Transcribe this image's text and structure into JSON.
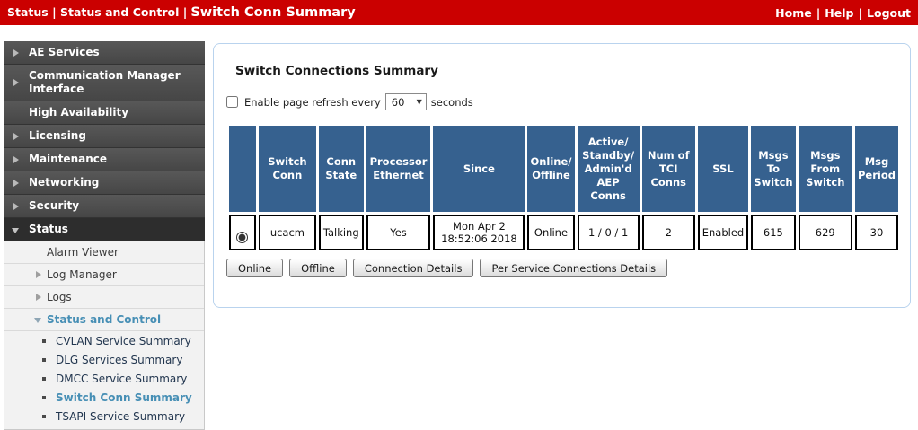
{
  "topbar": {
    "breadcrumb": "Status | Status and Control |",
    "current_page": "Switch Conn Summary",
    "separator": "|",
    "links": [
      "Home",
      "Help",
      "Logout"
    ],
    "background_color": "#cb0000"
  },
  "sidebar": {
    "items": [
      {
        "label": "AE Services"
      },
      {
        "label": "Communication Manager Interface"
      },
      {
        "label": "High Availability"
      },
      {
        "label": "Licensing"
      },
      {
        "label": "Maintenance"
      },
      {
        "label": "Networking"
      },
      {
        "label": "Security"
      },
      {
        "label": "Status"
      }
    ],
    "submenu": [
      {
        "label": "Alarm Viewer"
      },
      {
        "label": "Log Manager"
      },
      {
        "label": "Logs"
      },
      {
        "label": "Status and Control"
      },
      {
        "label": "CVLAN Service Summary"
      },
      {
        "label": "DLG Services Summary"
      },
      {
        "label": "DMCC Service Summary"
      },
      {
        "label": "Switch Conn Summary"
      },
      {
        "label": "TSAPI Service Summary"
      }
    ],
    "active_item": "Switch Conn Summary",
    "link_blue": "#478fb5"
  },
  "main": {
    "title": "Switch Connections Summary",
    "refresh": {
      "checkbox_label": "Enable page refresh every",
      "interval_value": "60",
      "suffix": "seconds",
      "checked": false
    },
    "table": {
      "header_color": "#36618f",
      "headers": [
        "",
        "Switch\nConn",
        "Conn\nState",
        "Processor\nEthernet",
        "Since",
        "Online/\nOffline",
        "Active/\nStandby/\nAdmin'd\nAEP\nConns",
        "Num of\nTCI\nConns",
        "SSL",
        "Msgs\nTo\nSwitch",
        "Msgs\nFrom\nSwitch",
        "Msg\nPeriod"
      ],
      "row": {
        "selected": true,
        "values": [
          "ucacm",
          "Talking",
          "Yes",
          "Mon Apr 2\n18:52:06 2018",
          "Online",
          "1 / 0 / 1",
          "2",
          "Enabled",
          "615",
          "629",
          "30"
        ]
      }
    },
    "buttons": [
      "Online",
      "Offline",
      "Connection Details",
      "Per Service Connections Details"
    ]
  }
}
